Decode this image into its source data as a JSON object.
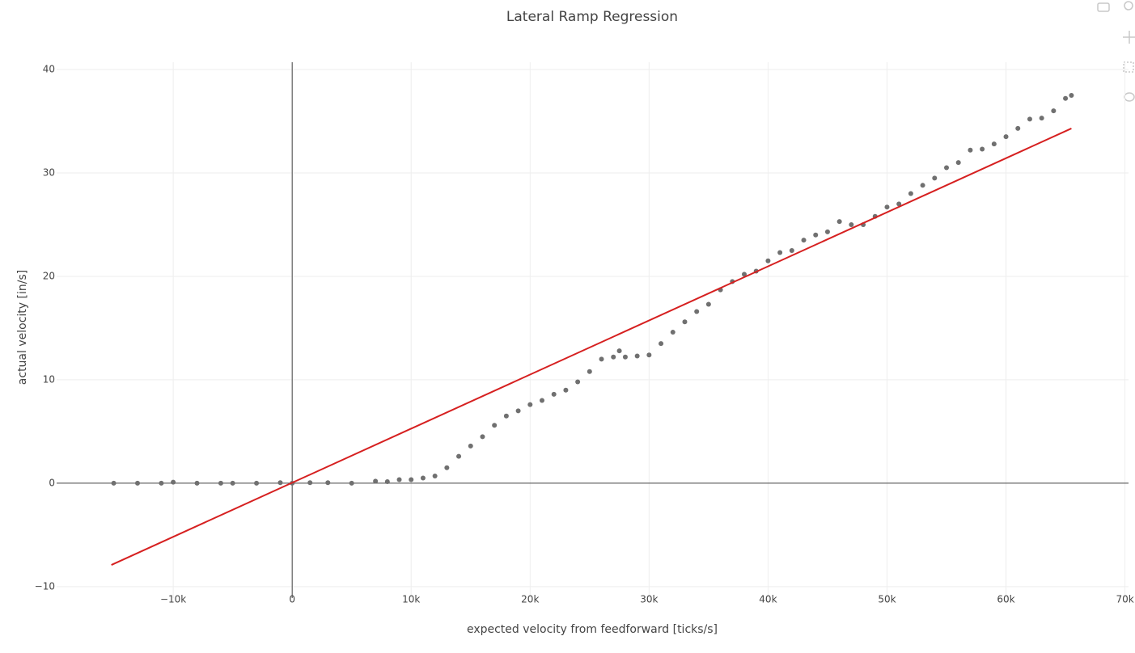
{
  "chart_data": {
    "type": "scatter",
    "title": "Lateral Ramp Regression",
    "x_label": "expected velocity from feedforward [ticks/s]",
    "y_label": "actual velocity [in/s]",
    "xlim": [
      -19800,
      70300
    ],
    "ylim": [
      -11.1,
      40.7
    ],
    "xticks": [
      {
        "value": -10000,
        "label": "−10k"
      },
      0,
      {
        "value": 10000,
        "label": "10k"
      },
      {
        "value": 20000,
        "label": "20k"
      },
      {
        "value": 30000,
        "label": "30k"
      },
      {
        "value": 40000,
        "label": "40k"
      },
      {
        "value": 50000,
        "label": "50k"
      },
      {
        "value": 60000,
        "label": "60k"
      },
      {
        "value": 70000,
        "label": "70k"
      }
    ],
    "yticks": [
      {
        "value": -10,
        "label": "−10"
      },
      0,
      10,
      20,
      30,
      40
    ],
    "grid": true,
    "zeroline": true,
    "series": [
      {
        "mode": "markers",
        "color": "#707070",
        "x": [
          -15000,
          -13000,
          -11000,
          -10000,
          -8000,
          -6000,
          -5000,
          -3000,
          -1000,
          0,
          1500,
          3000,
          5000,
          7000,
          8000,
          9000,
          10000,
          11000,
          12000,
          13000,
          14000,
          15000,
          16000,
          17000,
          18000,
          19000,
          20000,
          21000,
          22000,
          23000,
          24000,
          25000,
          26000,
          27000,
          27500,
          28000,
          29000,
          30000,
          31000,
          32000,
          33000,
          34000,
          35000,
          36000,
          37000,
          38000,
          39000,
          40000,
          41000,
          42000,
          43000,
          44000,
          45000,
          46000,
          47000,
          48000,
          49000,
          50000,
          51000,
          52000,
          53000,
          54000,
          55000,
          56000,
          57000,
          58000,
          59000,
          60000,
          61000,
          62000,
          63000,
          64000,
          65000,
          65500
        ],
        "values": [
          0,
          0,
          0,
          0.1,
          0,
          0,
          0,
          0,
          0.05,
          0,
          0.05,
          0.05,
          0,
          0.2,
          0.15,
          0.35,
          0.35,
          0.5,
          0.7,
          1.5,
          2.6,
          3.6,
          4.5,
          5.6,
          6.5,
          7.0,
          7.6,
          8.0,
          8.6,
          9.0,
          9.8,
          10.8,
          12.0,
          12.2,
          12.8,
          12.2,
          12.3,
          12.4,
          13.5,
          14.6,
          15.6,
          16.6,
          17.3,
          18.7,
          19.5,
          20.2,
          20.5,
          21.5,
          22.3,
          22.5,
          23.5,
          24.0,
          24.3,
          25.3,
          25.0,
          25.0,
          25.8,
          26.7,
          27.0,
          28.0,
          28.8,
          29.5,
          30.5,
          31.0,
          32.2,
          32.3,
          32.8,
          33.5,
          34.3,
          35.2,
          35.3,
          36.0,
          37.2,
          37.5
        ]
      },
      {
        "mode": "line",
        "color": "#d62020",
        "x": [
          -15200,
          65500
        ],
        "values": [
          -7.9,
          34.3
        ]
      }
    ]
  }
}
